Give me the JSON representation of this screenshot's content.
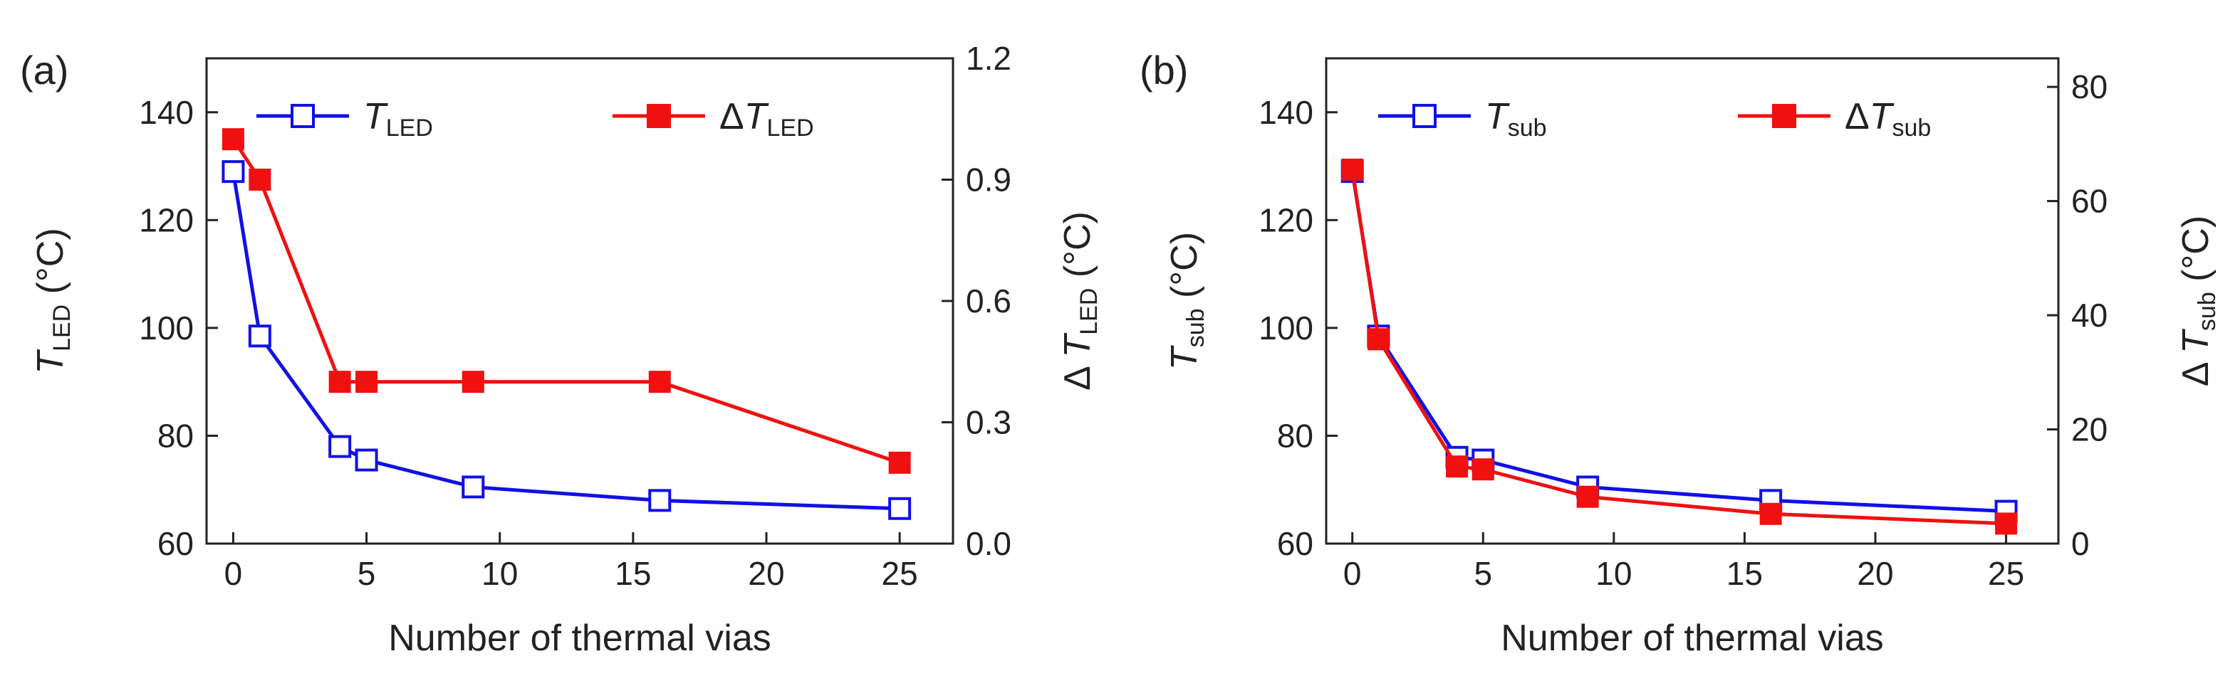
{
  "chart_data": [
    {
      "type": "line",
      "panel_label": "(a)",
      "xlabel": "Number of thermal vias",
      "xlim": [
        -1,
        27
      ],
      "xticks": [
        0,
        5,
        10,
        15,
        20,
        25
      ],
      "x": [
        0,
        1,
        4,
        5,
        9,
        16,
        25
      ],
      "y_left": {
        "label_main": "T",
        "label_sub": "LED",
        "label_unit": " (°C)",
        "lim": [
          60,
          150
        ],
        "ticks": [
          60,
          80,
          100,
          120,
          140
        ]
      },
      "y_right": {
        "label_main": "ΔT",
        "label_sub": "LED",
        "label_unit": " (°C)",
        "lim": [
          0.0,
          1.2
        ],
        "ticks": [
          "0.0",
          "0.3",
          "0.6",
          "0.9",
          "1.2"
        ]
      },
      "series": [
        {
          "name_main": "T",
          "name_sub": "LED",
          "axis": "left",
          "color": "#1010e8",
          "marker": "open-square",
          "values": [
            129,
            98.5,
            78,
            75.5,
            70.5,
            68,
            66.5
          ]
        },
        {
          "name_main": "ΔT",
          "name_sub": "LED",
          "axis": "right",
          "color": "#f01010",
          "marker": "filled-square",
          "values": [
            1.0,
            0.9,
            0.4,
            0.4,
            0.4,
            0.4,
            0.2
          ]
        }
      ]
    },
    {
      "type": "line",
      "panel_label": "(b)",
      "xlabel": "Number of thermal vias",
      "xlim": [
        -1,
        27
      ],
      "xticks": [
        0,
        5,
        10,
        15,
        20,
        25
      ],
      "x": [
        0,
        1,
        4,
        5,
        9,
        16,
        25
      ],
      "y_left": {
        "label_main": "T",
        "label_sub": "sub",
        "label_unit": " (°C)",
        "lim": [
          60,
          150
        ],
        "ticks": [
          60,
          80,
          100,
          120,
          140
        ]
      },
      "y_right": {
        "label_main": "ΔT",
        "label_sub": "sub",
        "label_unit": " (°C)",
        "lim": [
          0,
          85
        ],
        "ticks": [
          0,
          20,
          40,
          60,
          80
        ]
      },
      "series": [
        {
          "name_main": "T",
          "name_sub": "sub",
          "axis": "left",
          "color": "#1010e8",
          "marker": "open-square",
          "values": [
            129,
            98.5,
            76,
            75.5,
            70.5,
            68,
            66
          ]
        },
        {
          "name_main": "ΔT",
          "name_sub": "sub",
          "axis": "right",
          "color": "#f01010",
          "marker": "filled-square",
          "values": [
            65.5,
            35.8,
            13.5,
            13.0,
            8.2,
            5.2,
            3.5
          ]
        }
      ]
    }
  ]
}
